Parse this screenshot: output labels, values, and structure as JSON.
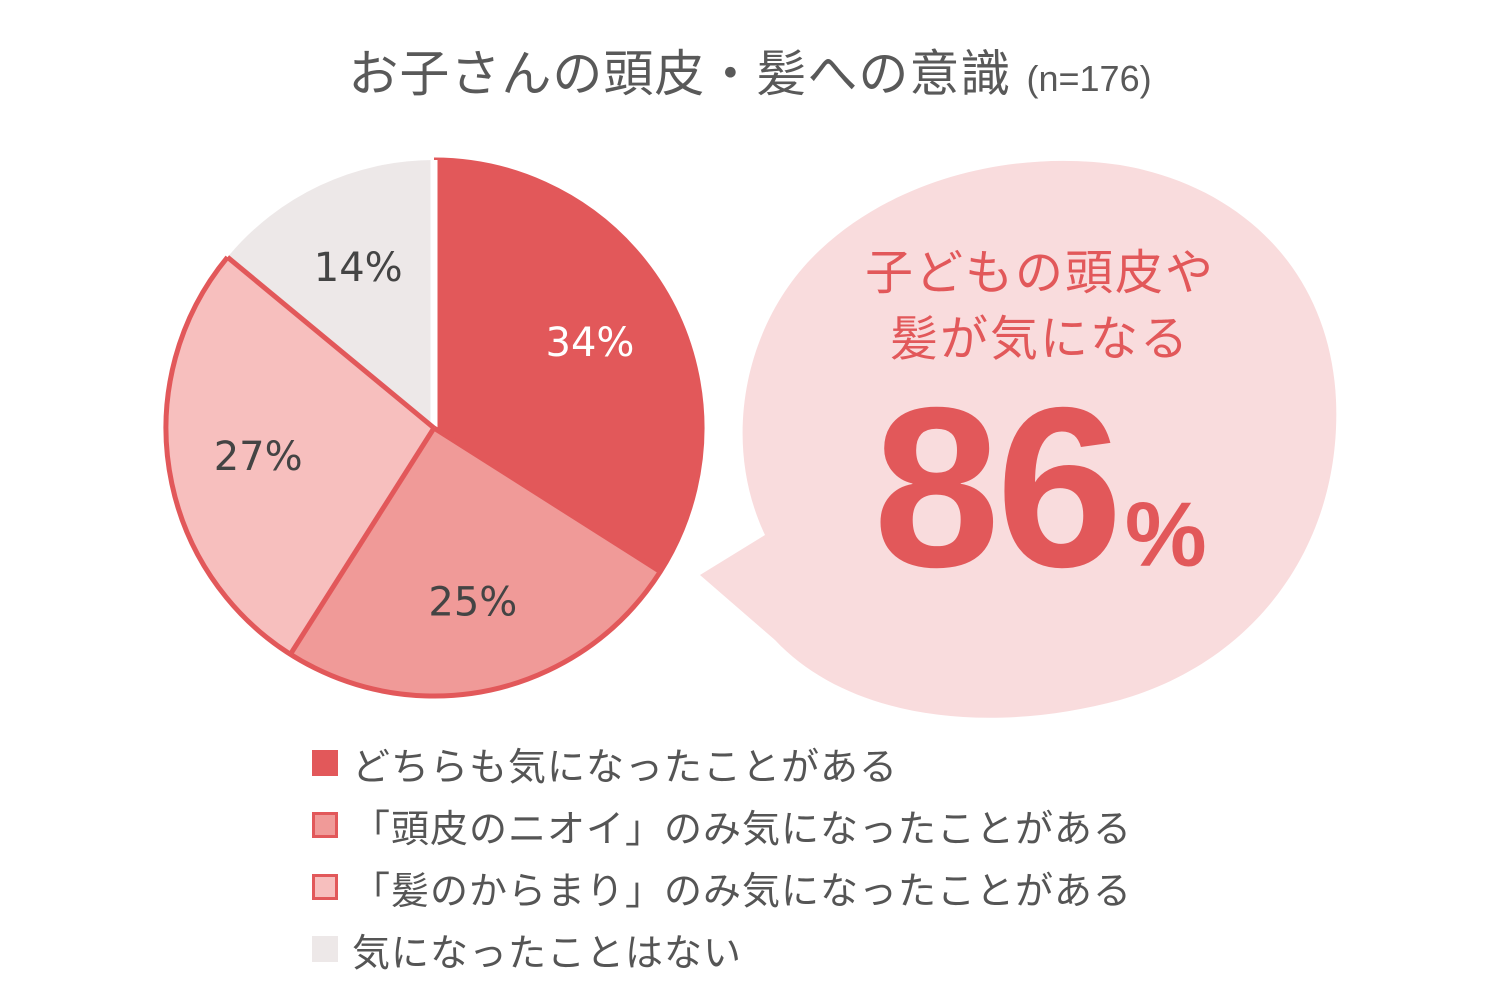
{
  "title": "お子さんの頭皮・髪への意識",
  "sample_size": "(n=176)",
  "callout": {
    "line1": "子どもの頭皮や",
    "line2": "髪が気になる",
    "value": "86",
    "unit": "%"
  },
  "colors": {
    "accent": "#e2585a",
    "bubble": "#f9dcdd",
    "outline": "#e2585a",
    "gray_slice": "#ede8e8"
  },
  "chart_data": {
    "type": "pie",
    "title": "お子さんの頭皮・髪への意識",
    "subtitle": "(n=176)",
    "start": "12 o'clock, clockwise",
    "slices": [
      {
        "label": "どちらも気になったことがある",
        "value": 34,
        "text": "34%",
        "color": "#e2585a",
        "text_color": "#ffffff"
      },
      {
        "label": "「頭皮のニオイ」のみ気になったことがある",
        "value": 25,
        "text": "25%",
        "color": "#f09a98",
        "text_color": "#444444"
      },
      {
        "label": "「髪のからまり」のみ気になったことがある",
        "value": 27,
        "text": "27%",
        "color": "#f7bfbe",
        "text_color": "#444444"
      },
      {
        "label": "気になったことはない",
        "value": 14,
        "text": "14%",
        "color": "#ede8e8",
        "text_color": "#444444"
      }
    ]
  },
  "legend": [
    {
      "label": "どちらも気になったことがある",
      "fill": "#e2585a",
      "border": "#e2585a"
    },
    {
      "label": "「頭皮のニオイ」のみ気になったことがある",
      "fill": "#f09a98",
      "border": "#e2585a"
    },
    {
      "label": "「髪のからまり」のみ気になったことがある",
      "fill": "#f7bfbe",
      "border": "#e2585a"
    },
    {
      "label": "気になったことはない",
      "fill": "#ede8e8",
      "border": "#ede8e8"
    }
  ]
}
